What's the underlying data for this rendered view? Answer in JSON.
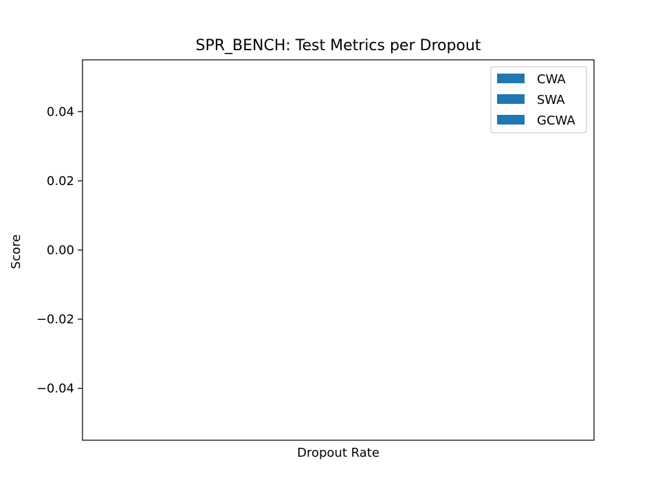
{
  "chart_data": {
    "type": "bar",
    "title": "SPR_BENCH: Test Metrics per Dropout",
    "xlabel": "Dropout Rate",
    "ylabel": "Score",
    "categories": [],
    "series": [
      {
        "name": "CWA",
        "values": [],
        "color": "#1f77b4"
      },
      {
        "name": "SWA",
        "values": [],
        "color": "#1f77b4"
      },
      {
        "name": "GCWA",
        "values": [],
        "color": "#1f77b4"
      }
    ],
    "ylim": [
      -0.055,
      0.055
    ],
    "yticks": [
      -0.04,
      -0.02,
      0.0,
      0.02,
      0.04
    ],
    "ytick_labels": [
      "−0.04",
      "−0.02",
      "0.00",
      "0.02",
      "0.04"
    ],
    "grid": false,
    "legend_position": "top-right"
  }
}
